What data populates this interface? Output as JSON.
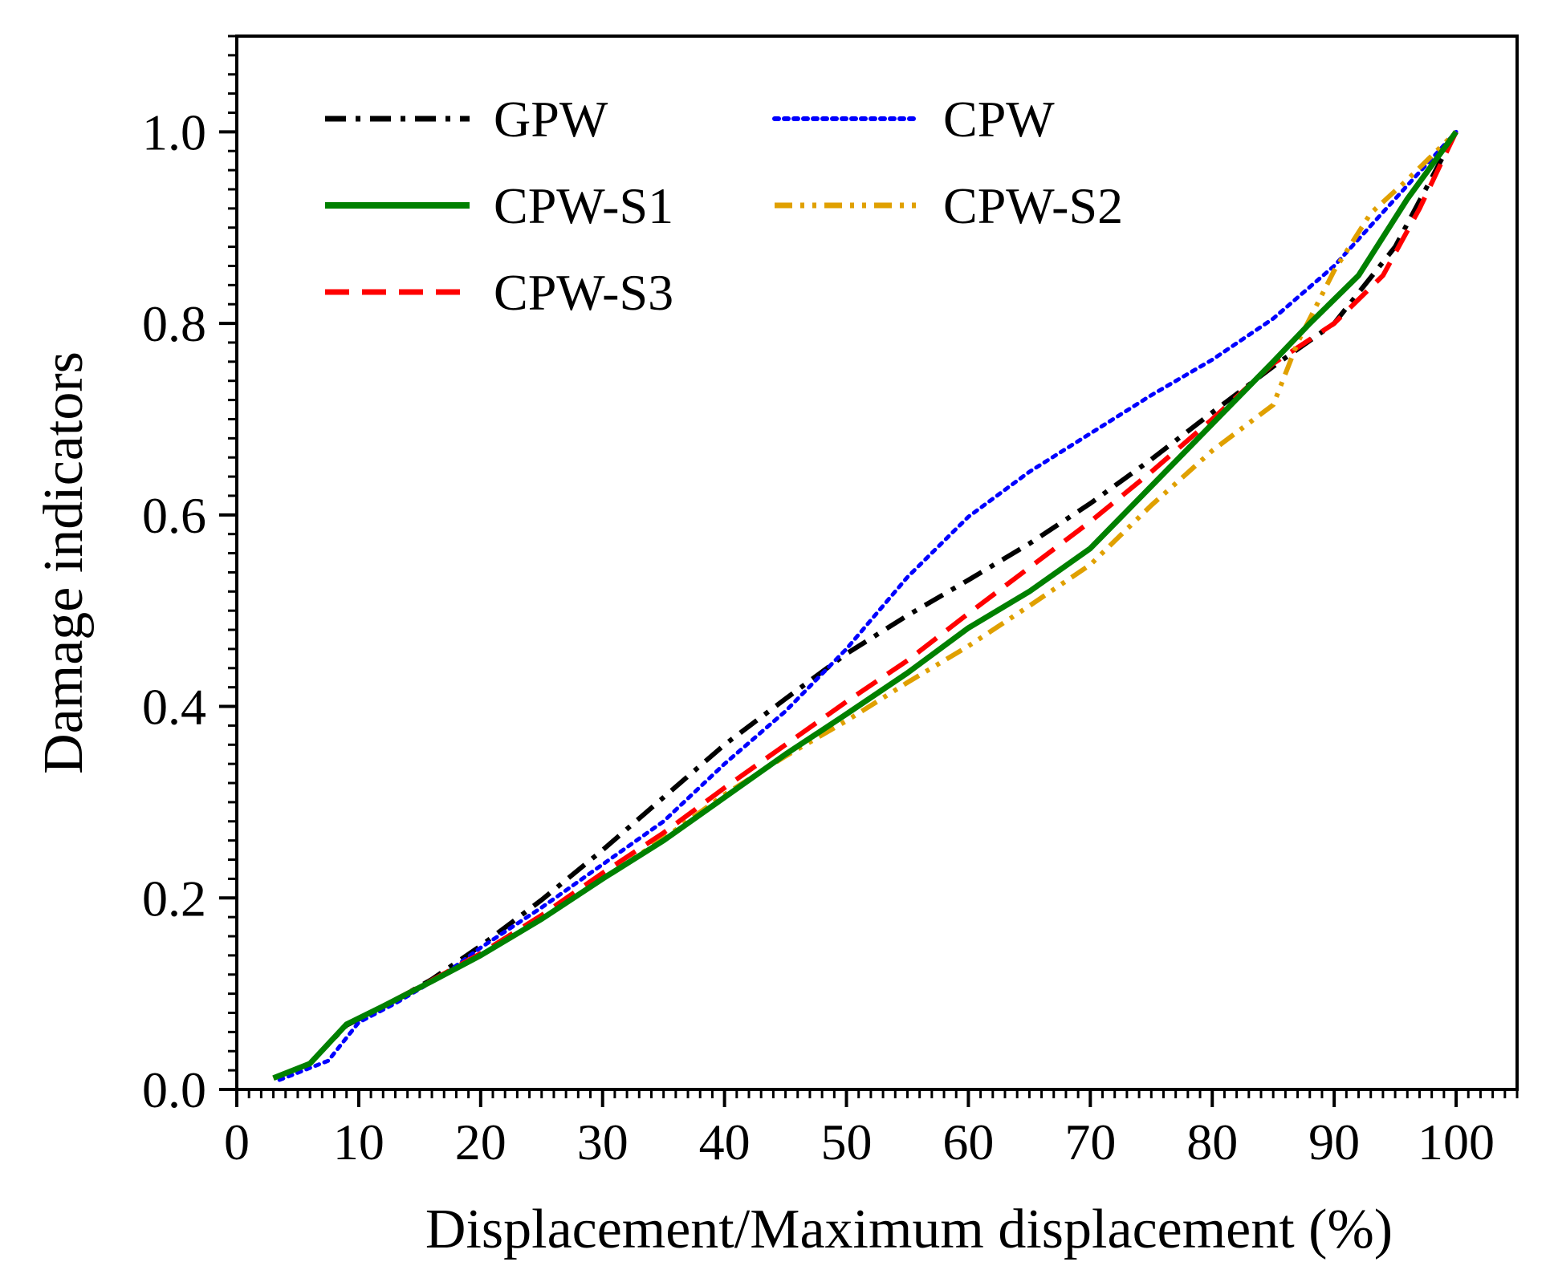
{
  "chart_data": {
    "type": "line",
    "title": "",
    "xlabel": "Displacement/Maximum displacement (%)",
    "ylabel": "Damage indicators",
    "xlim": [
      0,
      105
    ],
    "ylim": [
      0,
      1.1
    ],
    "xticks": [
      0,
      10,
      20,
      30,
      40,
      50,
      60,
      70,
      80,
      90,
      100
    ],
    "yticks": [
      0.0,
      0.2,
      0.4,
      0.6,
      0.8,
      1.0
    ],
    "xtick_labels": [
      "0",
      "10",
      "20",
      "30",
      "40",
      "50",
      "60",
      "70",
      "80",
      "90",
      "100"
    ],
    "ytick_labels": [
      "0.0",
      "0.2",
      "0.4",
      "0.6",
      "0.8",
      "1.0"
    ],
    "grid": false,
    "legend_position": "top-left",
    "series": [
      {
        "name": "GPW",
        "color": "#000000",
        "style": "dashdot",
        "x": [
          3,
          6,
          9,
          12,
          16,
          20,
          25,
          30,
          35,
          40,
          45,
          50,
          55,
          60,
          65,
          70,
          75,
          80,
          85,
          90,
          95,
          100
        ],
        "y": [
          0.012,
          0.027,
          0.067,
          0.086,
          0.115,
          0.15,
          0.198,
          0.25,
          0.305,
          0.36,
          0.408,
          0.455,
          0.495,
          0.532,
          0.57,
          0.612,
          0.658,
          0.707,
          0.755,
          0.8,
          0.88,
          1.0
        ]
      },
      {
        "name": "CPW",
        "color": "#0000ff",
        "style": "dotted",
        "x": [
          3.5,
          7.5,
          10,
          13,
          17,
          20,
          25,
          30,
          35,
          40,
          45,
          50,
          55,
          60,
          65,
          70,
          75,
          80,
          85,
          90,
          95,
          100
        ],
        "y": [
          0.01,
          0.03,
          0.07,
          0.09,
          0.12,
          0.148,
          0.19,
          0.235,
          0.28,
          0.34,
          0.395,
          0.46,
          0.535,
          0.598,
          0.645,
          0.685,
          0.725,
          0.762,
          0.805,
          0.86,
          0.93,
          1.0
        ]
      },
      {
        "name": "CPW-S1",
        "color": "#008000",
        "style": "solid",
        "x": [
          3,
          6,
          9,
          12,
          16,
          20,
          25,
          30,
          35,
          40,
          45,
          50,
          55,
          60,
          65,
          70,
          75,
          80,
          85,
          88,
          92,
          96,
          100
        ],
        "y": [
          0.012,
          0.027,
          0.068,
          0.087,
          0.113,
          0.14,
          0.178,
          0.22,
          0.26,
          0.305,
          0.35,
          0.392,
          0.435,
          0.482,
          0.52,
          0.565,
          0.63,
          0.695,
          0.76,
          0.8,
          0.85,
          0.93,
          1.0
        ]
      },
      {
        "name": "CPW-S2",
        "color": "#e0a000",
        "style": "dashdotdot",
        "x": [
          3,
          6,
          9,
          12,
          16,
          20,
          25,
          30,
          35,
          40,
          45,
          50,
          55,
          60,
          65,
          70,
          75,
          80,
          85,
          87,
          90,
          93,
          96,
          100
        ],
        "y": [
          0.012,
          0.027,
          0.068,
          0.087,
          0.113,
          0.14,
          0.178,
          0.22,
          0.262,
          0.308,
          0.348,
          0.385,
          0.425,
          0.463,
          0.505,
          0.548,
          0.61,
          0.667,
          0.715,
          0.78,
          0.855,
          0.915,
          0.95,
          1.0
        ]
      },
      {
        "name": "CPW-S3",
        "color": "#ff0000",
        "style": "dashed",
        "x": [
          3,
          6,
          9,
          12,
          16,
          20,
          25,
          30,
          35,
          40,
          45,
          50,
          55,
          60,
          65,
          70,
          75,
          80,
          85,
          90,
          94,
          97,
          100
        ],
        "y": [
          0.012,
          0.027,
          0.068,
          0.087,
          0.114,
          0.142,
          0.182,
          0.226,
          0.268,
          0.315,
          0.36,
          0.405,
          0.448,
          0.497,
          0.545,
          0.593,
          0.645,
          0.7,
          0.758,
          0.8,
          0.85,
          0.92,
          1.0
        ]
      }
    ],
    "legend": {
      "columns": [
        [
          "GPW",
          "CPW-S1",
          "CPW-S3"
        ],
        [
          "CPW",
          "CPW-S2"
        ]
      ]
    }
  }
}
